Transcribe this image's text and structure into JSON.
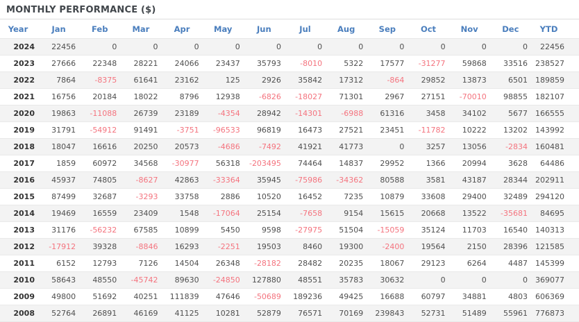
{
  "colors": {
    "header_text_blue": "#4a7ebd",
    "negative_red": "#f4737e",
    "value_text": "#4f4f4f",
    "year_text": "#333333",
    "title_text": "#41464b",
    "stripe_gray": "#f3f3f3",
    "border_gray": "#e9e9e9"
  },
  "chart_data": {
    "type": "table",
    "title": "MONTHLY PERFORMANCE ($)",
    "columns": [
      "Year",
      "Jan",
      "Feb",
      "Mar",
      "Apr",
      "May",
      "Jun",
      "Jul",
      "Aug",
      "Sep",
      "Oct",
      "Nov",
      "Dec",
      "YTD"
    ],
    "rows": [
      {
        "year": "2024",
        "values": [
          22456,
          0,
          0,
          0,
          0,
          0,
          0,
          0,
          0,
          0,
          0,
          0,
          22456
        ]
      },
      {
        "year": "2023",
        "values": [
          27666,
          22348,
          28221,
          24066,
          23437,
          35793,
          -8010,
          5322,
          17577,
          -31277,
          59868,
          33516,
          238527
        ]
      },
      {
        "year": "2022",
        "values": [
          7864,
          -8375,
          61641,
          23162,
          125,
          2926,
          35842,
          17312,
          -864,
          29852,
          13873,
          6501,
          189859
        ]
      },
      {
        "year": "2021",
        "values": [
          16756,
          20184,
          18022,
          8796,
          12938,
          -6826,
          -18027,
          71301,
          2967,
          27151,
          -70010,
          98855,
          182107
        ]
      },
      {
        "year": "2020",
        "values": [
          19863,
          -11088,
          26739,
          23189,
          -4354,
          28942,
          -14301,
          -6988,
          61316,
          3458,
          34102,
          5677,
          166555
        ]
      },
      {
        "year": "2019",
        "values": [
          31791,
          -54912,
          91491,
          -3751,
          -96533,
          96819,
          16473,
          27521,
          23451,
          -11782,
          10222,
          13202,
          143992
        ]
      },
      {
        "year": "2018",
        "values": [
          18047,
          16616,
          20250,
          20573,
          -4686,
          -7492,
          41921,
          41773,
          0,
          3257,
          13056,
          -2834,
          160481
        ]
      },
      {
        "year": "2017",
        "values": [
          1859,
          60972,
          34568,
          -30977,
          56318,
          -203495,
          74464,
          14837,
          29952,
          1366,
          20994,
          3628,
          64486
        ]
      },
      {
        "year": "2016",
        "values": [
          45937,
          74805,
          -8627,
          42863,
          -33364,
          35945,
          -75986,
          -34362,
          80588,
          3581,
          43187,
          28344,
          202911
        ]
      },
      {
        "year": "2015",
        "values": [
          87499,
          32687,
          -3293,
          33758,
          2886,
          10520,
          16452,
          7235,
          10879,
          33608,
          29400,
          32489,
          294120
        ]
      },
      {
        "year": "2014",
        "values": [
          19469,
          16559,
          23409,
          1548,
          -17064,
          25154,
          -7658,
          9154,
          15615,
          20668,
          13522,
          -35681,
          84695
        ]
      },
      {
        "year": "2013",
        "values": [
          31176,
          -56232,
          67585,
          10899,
          5450,
          9598,
          -27975,
          51504,
          -15059,
          35124,
          11703,
          16540,
          140313
        ]
      },
      {
        "year": "2012",
        "values": [
          -17912,
          39328,
          -8846,
          16293,
          -2251,
          19503,
          8460,
          19300,
          -2400,
          19564,
          2150,
          28396,
          121585
        ]
      },
      {
        "year": "2011",
        "values": [
          6152,
          12793,
          7126,
          14504,
          26348,
          -28182,
          28482,
          20235,
          18067,
          29123,
          6264,
          4487,
          145399
        ]
      },
      {
        "year": "2010",
        "values": [
          58643,
          48550,
          -45742,
          89630,
          -24850,
          127880,
          48551,
          35783,
          30632,
          0,
          0,
          0,
          369077
        ]
      },
      {
        "year": "2009",
        "values": [
          49800,
          51692,
          40251,
          111839,
          47646,
          -50689,
          189236,
          49425,
          16688,
          60797,
          34881,
          4803,
          606369
        ]
      },
      {
        "year": "2008",
        "values": [
          52764,
          26891,
          46169,
          41125,
          10281,
          52879,
          76571,
          70169,
          239843,
          52731,
          51489,
          55961,
          776873
        ]
      }
    ]
  }
}
